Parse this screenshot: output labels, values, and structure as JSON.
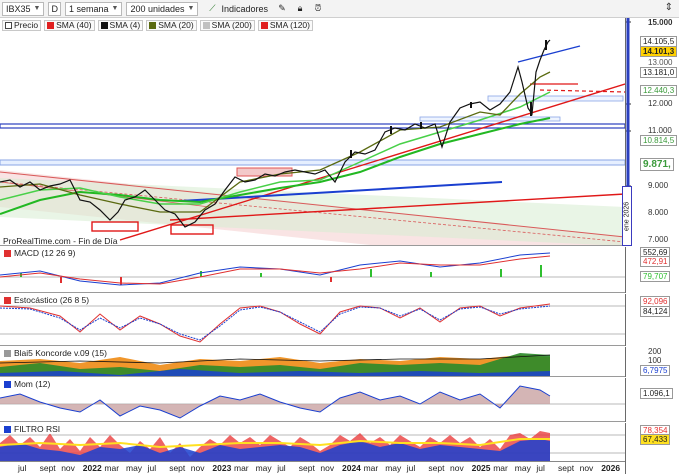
{
  "toolbar": {
    "symbol": "IBX35",
    "symbol_dd": "D",
    "period": "1 semana",
    "units": "200 unidades",
    "indicators_label": "Indicadores"
  },
  "legend": {
    "items": [
      {
        "label": "Precio",
        "color": "#ffffff"
      },
      {
        "label": "SMA (40)",
        "color": "#e02020"
      },
      {
        "label": "SMA (4)",
        "color": "#111111"
      },
      {
        "label": "SMA (20)",
        "color": "#5a6a10"
      },
      {
        "label": "SMA (200)",
        "color": "#c0c0c0"
      },
      {
        "label": "SMA (120)",
        "color": "#e02020"
      }
    ]
  },
  "price_axis": {
    "labels": [
      "15.000",
      "13.000",
      "12.000",
      "11.000",
      "9.000",
      "8.000",
      "7.000"
    ],
    "badges": [
      {
        "text": "14.105,5",
        "color": "#ffffff"
      },
      {
        "text": "14.101,3",
        "color": "#ffd000"
      },
      {
        "text": "13.181,0",
        "color": "#ffffff"
      },
      {
        "text": "12.440,3",
        "color": "#ffffff"
      },
      {
        "text": "10.814,5",
        "color": "#ffffff"
      },
      {
        "text": "9.871,",
        "color": "#ffffff"
      }
    ]
  },
  "credit": "ProRealTime.com - Fin de Día",
  "vertical_label": "ene 2026",
  "panels": {
    "macd": {
      "title": "MACD (12 26 9)",
      "labels": [
        "552,69",
        "472,91",
        "79,707"
      ]
    },
    "stoch": {
      "title": "Estocástico (26 8 5)",
      "labels": [
        "92,096",
        "84,124"
      ]
    },
    "koncorde": {
      "title": "Blai5 Koncorde v.09 (15)",
      "labels": [
        "200",
        "100",
        "6,7975"
      ]
    },
    "mom": {
      "title": "Mom (12)",
      "labels": [
        "1.096,1"
      ]
    },
    "rsi": {
      "title": "FILTRO RSI",
      "labels": [
        "78,354",
        "67,433"
      ]
    }
  },
  "xaxis": {
    "labels": [
      {
        "t": "jul",
        "year": false
      },
      {
        "t": "sept",
        "year": false
      },
      {
        "t": "nov",
        "year": false
      },
      {
        "t": "2022",
        "year": true
      },
      {
        "t": "mar",
        "year": false
      },
      {
        "t": "may",
        "year": false
      },
      {
        "t": "jul",
        "year": false
      },
      {
        "t": "sept",
        "year": false
      },
      {
        "t": "nov",
        "year": false
      },
      {
        "t": "2023",
        "year": true
      },
      {
        "t": "mar",
        "year": false
      },
      {
        "t": "may",
        "year": false
      },
      {
        "t": "jul",
        "year": false
      },
      {
        "t": "sept",
        "year": false
      },
      {
        "t": "nov",
        "year": false
      },
      {
        "t": "2024",
        "year": true
      },
      {
        "t": "mar",
        "year": false
      },
      {
        "t": "may",
        "year": false
      },
      {
        "t": "jul",
        "year": false
      },
      {
        "t": "sept",
        "year": false
      },
      {
        "t": "nov",
        "year": false
      },
      {
        "t": "2025",
        "year": true
      },
      {
        "t": "mar",
        "year": false
      },
      {
        "t": "may",
        "year": false
      },
      {
        "t": "jul",
        "year": false
      },
      {
        "t": "sept",
        "year": false
      },
      {
        "t": "nov",
        "year": false
      },
      {
        "t": "2026",
        "year": true
      }
    ]
  }
}
